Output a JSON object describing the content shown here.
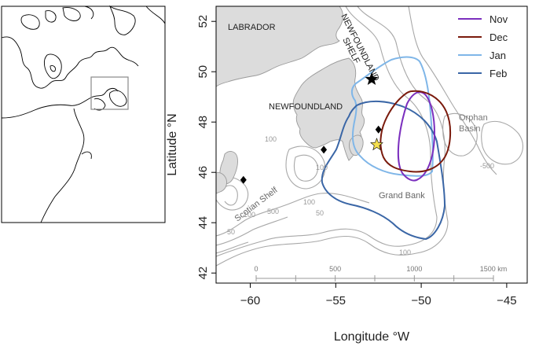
{
  "inset": {
    "outline_color": "#000000",
    "box_color": "#888888"
  },
  "map": {
    "xlabel": "Longitude °W",
    "ylabel": "Latitude °N",
    "x_ticks": [
      {
        "value": -60,
        "label": "−60"
      },
      {
        "value": -55,
        "label": "−55"
      },
      {
        "value": -50,
        "label": "−50"
      },
      {
        "value": -45,
        "label": "−45"
      }
    ],
    "y_ticks": [
      {
        "value": 42,
        "label": "42"
      },
      {
        "value": 44,
        "label": "44"
      },
      {
        "value": 46,
        "label": "46"
      },
      {
        "value": 48,
        "label": "48"
      },
      {
        "value": 50,
        "label": "50"
      },
      {
        "value": 52,
        "label": "52"
      }
    ],
    "xlim": [
      -62,
      -43.8
    ],
    "ylim": [
      41.6,
      52.6
    ],
    "land_color": "#dcdcdc",
    "bathy_color": "#a8a8a8",
    "labels": {
      "labrador": "LABRADOR",
      "newfoundland": "NEWFOUNDLAND",
      "shelf_line1": "NEWFOUNDLAND",
      "shelf_line2": "SHELF",
      "orphan1": "Orphan",
      "orphan2": "Basin",
      "grand_bank": "Grand Bank",
      "scotian": "Scotian Shelf"
    },
    "contour_labels": [
      "100",
      "-500",
      "100",
      "50",
      "100",
      "500",
      "100",
      "50",
      "100"
    ],
    "legend": [
      {
        "name": "Nov",
        "color": "#7b2fbe"
      },
      {
        "name": "Dec",
        "color": "#7a1a0c"
      },
      {
        "name": "Jan",
        "color": "#7fb6e8"
      },
      {
        "name": "Feb",
        "color": "#3a66a6"
      }
    ],
    "scale_bar": {
      "labels": [
        {
          "label": "0",
          "km": 0
        },
        {
          "label": "500",
          "km": 500
        },
        {
          "label": "1000",
          "km": 1000
        },
        {
          "label": "1500 km",
          "km": 1500
        }
      ]
    },
    "markers": [
      {
        "type": "star",
        "lon": -52.9,
        "lat": 49.7,
        "color": "#000000"
      },
      {
        "type": "star",
        "lon": -52.6,
        "lat": 47.1,
        "color": "#f5e050"
      },
      {
        "type": "diamond",
        "lon": -52.5,
        "lat": 47.7
      },
      {
        "type": "diamond",
        "lon": -55.7,
        "lat": 46.9
      },
      {
        "type": "diamond",
        "lon": -60.4,
        "lat": 45.7
      }
    ]
  }
}
